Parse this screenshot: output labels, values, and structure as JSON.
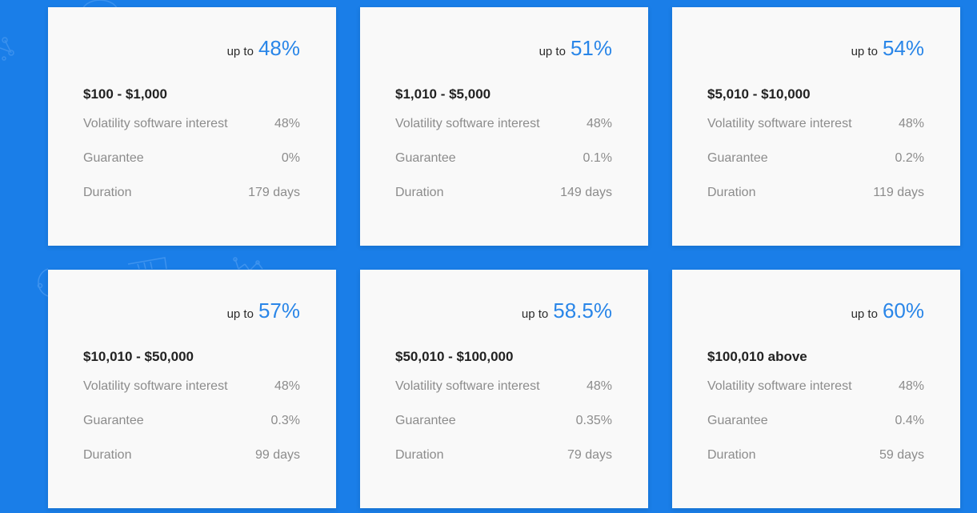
{
  "plans": [
    {
      "prefix": "up to",
      "rate": "48%",
      "range": "$100 - $1,000",
      "rows": [
        {
          "label": "Volatility software interest",
          "value": "48%"
        },
        {
          "label": "Guarantee",
          "value": "0%"
        },
        {
          "label": "Duration",
          "value": "179 days"
        }
      ]
    },
    {
      "prefix": "up to",
      "rate": "51%",
      "range": "$1,010 - $5,000",
      "rows": [
        {
          "label": "Volatility software interest",
          "value": "48%"
        },
        {
          "label": "Guarantee",
          "value": "0.1%"
        },
        {
          "label": "Duration",
          "value": "149 days"
        }
      ]
    },
    {
      "prefix": "up to",
      "rate": "54%",
      "range": "$5,010 - $10,000",
      "rows": [
        {
          "label": "Volatility software interest",
          "value": "48%"
        },
        {
          "label": "Guarantee",
          "value": "0.2%"
        },
        {
          "label": "Duration",
          "value": "119 days"
        }
      ]
    },
    {
      "prefix": "up to",
      "rate": "57%",
      "range": "$10,010 - $50,000",
      "rows": [
        {
          "label": "Volatility software interest",
          "value": "48%"
        },
        {
          "label": "Guarantee",
          "value": "0.3%"
        },
        {
          "label": "Duration",
          "value": "99 days"
        }
      ]
    },
    {
      "prefix": "up to",
      "rate": "58.5%",
      "range": "$50,010 - $100,000",
      "rows": [
        {
          "label": "Volatility software interest",
          "value": "48%"
        },
        {
          "label": "Guarantee",
          "value": "0.35%"
        },
        {
          "label": "Duration",
          "value": "79 days"
        }
      ]
    },
    {
      "prefix": "up to",
      "rate": "60%",
      "range": "$100,010 above",
      "rows": [
        {
          "label": "Volatility software interest",
          "value": "48%"
        },
        {
          "label": "Guarantee",
          "value": "0.4%"
        },
        {
          "label": "Duration",
          "value": "59 days"
        }
      ]
    }
  ],
  "colors": {
    "background": "#1a7ee8",
    "card": "#f9f9f9",
    "accent": "#2a86e8",
    "heading": "#222222",
    "muted": "#8c8c8c"
  },
  "icons": [
    "network-node-icon",
    "gauge-icon",
    "ticket-icon",
    "molecule-icon"
  ]
}
